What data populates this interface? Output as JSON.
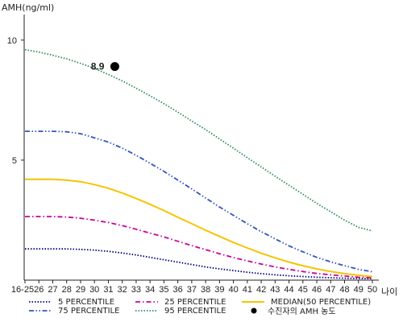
{
  "chart_data": {
    "type": "line",
    "ylabel": "AMH(ng/ml)",
    "xlabel": "나이",
    "categories": [
      "16-25",
      "26",
      "27",
      "28",
      "29",
      "30",
      "31",
      "32",
      "33",
      "34",
      "35",
      "36",
      "37",
      "38",
      "39",
      "40",
      "41",
      "42",
      "43",
      "44",
      "45",
      "46",
      "47",
      "48",
      "49",
      "50"
    ],
    "ylim": [
      0,
      11
    ],
    "yticks": [
      5,
      10
    ],
    "grid": false,
    "legend_position": "bottom",
    "series": [
      {
        "name": "5 PERCENTILE",
        "color": "#000080",
        "style": "dotted",
        "values": [
          1.3,
          1.3,
          1.3,
          1.3,
          1.28,
          1.25,
          1.2,
          1.13,
          1.05,
          0.95,
          0.85,
          0.75,
          0.65,
          0.55,
          0.47,
          0.4,
          0.33,
          0.27,
          0.22,
          0.18,
          0.15,
          0.12,
          0.1,
          0.08,
          0.07,
          0.06
        ]
      },
      {
        "name": "25 PERCENTILE",
        "color": "#cc0099",
        "style": "dashdot",
        "values": [
          2.65,
          2.65,
          2.65,
          2.63,
          2.58,
          2.5,
          2.4,
          2.27,
          2.12,
          1.96,
          1.8,
          1.62,
          1.44,
          1.27,
          1.1,
          0.94,
          0.8,
          0.67,
          0.55,
          0.45,
          0.36,
          0.28,
          0.22,
          0.17,
          0.12,
          0.1
        ]
      },
      {
        "name": "MEDIAN(50 PERCENTILE)",
        "color": "#f5c400",
        "style": "solid",
        "values": [
          4.2,
          4.2,
          4.2,
          4.17,
          4.1,
          3.98,
          3.83,
          3.63,
          3.4,
          3.16,
          2.9,
          2.62,
          2.35,
          2.08,
          1.82,
          1.57,
          1.34,
          1.12,
          0.93,
          0.75,
          0.6,
          0.47,
          0.36,
          0.27,
          0.2,
          0.15
        ]
      },
      {
        "name": "75 PERCENTILE",
        "color": "#3355bb",
        "style": "dashdotdot",
        "values": [
          6.2,
          6.2,
          6.2,
          6.18,
          6.1,
          5.93,
          5.75,
          5.5,
          5.2,
          4.87,
          4.53,
          4.17,
          3.8,
          3.42,
          3.05,
          2.7,
          2.35,
          2.02,
          1.72,
          1.43,
          1.18,
          0.95,
          0.76,
          0.6,
          0.45,
          0.35
        ]
      },
      {
        "name": "95 PERCENTILE",
        "color": "#2e8b57",
        "style": "dotted",
        "values": [
          9.6,
          9.5,
          9.37,
          9.22,
          9.03,
          8.82,
          8.57,
          8.3,
          8.0,
          7.68,
          7.35,
          7.0,
          6.63,
          6.27,
          5.88,
          5.5,
          5.1,
          4.72,
          4.33,
          3.95,
          3.58,
          3.2,
          2.85,
          2.5,
          2.2,
          2.05
        ]
      }
    ],
    "highlight_point": {
      "name": "수진자의 AMH 농도",
      "x": "31",
      "y": 8.9,
      "label": "8.9",
      "color": "#000000"
    }
  }
}
